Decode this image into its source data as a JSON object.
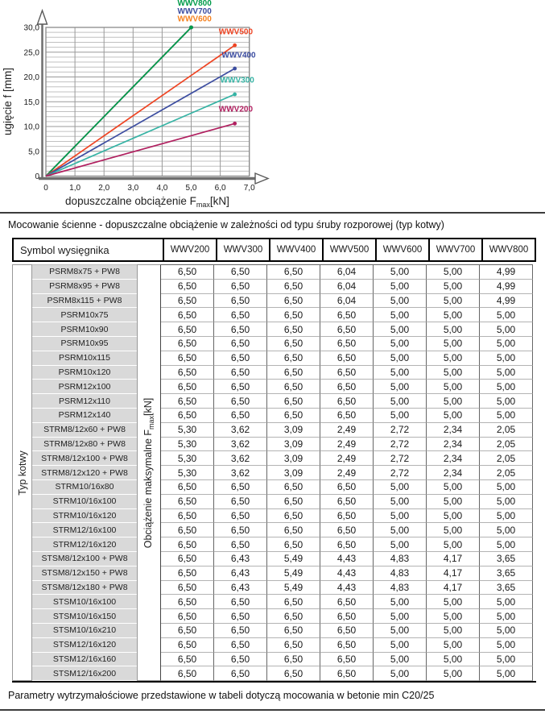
{
  "caption": "Mocowanie ścienne - dopuszczalne obciążenie w zależności od typu śruby rozporowej (typ kotwy)",
  "footnote": "Parametry wytrzymałościowe przedstawione w tabeli dotyczą mocowania w betonie min C20/25",
  "chart_data": {
    "type": "line",
    "title": "",
    "ylabel": "ugięcie f [mm]",
    "xlabel_prefix": "dopuszczalne obciążenie F",
    "xlabel_sub": "max",
    "xlabel_suffix": "[kN]",
    "xlim": [
      0,
      7.2
    ],
    "ylim": [
      0,
      30
    ],
    "grid": {
      "x_step": 1.0,
      "y_step": 1.0,
      "y_major_step": 5.0
    },
    "x_ticks": [
      {
        "v": 0,
        "label": "0"
      },
      {
        "v": 1,
        "label": "1,0"
      },
      {
        "v": 2,
        "label": "2,0"
      },
      {
        "v": 3,
        "label": "3,0"
      },
      {
        "v": 4,
        "label": "4,0"
      },
      {
        "v": 5,
        "label": "5,0"
      },
      {
        "v": 6,
        "label": "6,0"
      },
      {
        "v": 7,
        "label": "7,0"
      }
    ],
    "y_ticks": [
      {
        "v": 0,
        "label": "0"
      },
      {
        "v": 5,
        "label": "5,0"
      },
      {
        "v": 10,
        "label": "10,0"
      },
      {
        "v": 15,
        "label": "15,0"
      },
      {
        "v": 20,
        "label": "20,0"
      },
      {
        "v": 25,
        "label": "25,0"
      },
      {
        "v": 30,
        "label": "30,0"
      }
    ],
    "legend_position": "inline-labels",
    "series": [
      {
        "name": "WWV600",
        "color": "#f58220",
        "points": [
          [
            0,
            0
          ],
          [
            5.0,
            30.0
          ]
        ],
        "label_at": [
          4.53,
          31.2
        ],
        "note": "overlaps WWV800 line"
      },
      {
        "name": "WWV700",
        "color": "#3c4da0",
        "points": [
          [
            0,
            0
          ],
          [
            5.0,
            30.0
          ]
        ],
        "label_at": [
          4.53,
          32.8
        ],
        "note": "overlaps WWV800 line"
      },
      {
        "name": "WWV800",
        "color": "#009b4a",
        "points": [
          [
            0,
            0
          ],
          [
            5.0,
            30.0
          ]
        ],
        "label_at": [
          4.53,
          34.4
        ]
      },
      {
        "name": "WWV500",
        "color": "#ee4423",
        "points": [
          [
            0,
            0
          ],
          [
            6.5,
            26.4
          ]
        ],
        "label_at": [
          5.95,
          28.6
        ]
      },
      {
        "name": "WWV400",
        "color": "#3c4da0",
        "points": [
          [
            0,
            0
          ],
          [
            6.5,
            21.7
          ]
        ],
        "label_at": [
          6.05,
          23.9
        ]
      },
      {
        "name": "WWV300",
        "color": "#35b3a4",
        "points": [
          [
            0,
            0
          ],
          [
            6.5,
            16.5
          ]
        ],
        "label_at": [
          6.0,
          18.9
        ]
      },
      {
        "name": "WWV200",
        "color": "#b01f5f",
        "points": [
          [
            0,
            0
          ],
          [
            6.5,
            10.6
          ]
        ],
        "label_at": [
          5.95,
          13.0
        ]
      }
    ]
  },
  "table": {
    "corner_header": "Symbol wysięgnika",
    "col_headers": [
      "WWV200",
      "WWV300",
      "WWV400",
      "WWV500",
      "WWV600",
      "WWV700",
      "WWV800"
    ],
    "left_label": "Typ kotwy",
    "mid_label": {
      "prefix": "Obciążenie maksymalne F",
      "sub": "max",
      "suffix": "[kN]"
    },
    "rows": [
      {
        "symbol": "PSRM8x75 + PW8",
        "values": [
          "6,50",
          "6,50",
          "6,50",
          "6,04",
          "5,00",
          "5,00",
          "4,99"
        ]
      },
      {
        "symbol": "PSRM8x95 + PW8",
        "values": [
          "6,50",
          "6,50",
          "6,50",
          "6,04",
          "5,00",
          "5,00",
          "4,99"
        ]
      },
      {
        "symbol": "PSRM8x115 + PW8",
        "values": [
          "6,50",
          "6,50",
          "6,50",
          "6,04",
          "5,00",
          "5,00",
          "4,99"
        ]
      },
      {
        "symbol": "PSRM10x75",
        "values": [
          "6,50",
          "6,50",
          "6,50",
          "6,50",
          "5,00",
          "5,00",
          "5,00"
        ]
      },
      {
        "symbol": "PSRM10x90",
        "values": [
          "6,50",
          "6,50",
          "6,50",
          "6,50",
          "5,00",
          "5,00",
          "5,00"
        ]
      },
      {
        "symbol": "PSRM10x95",
        "values": [
          "6,50",
          "6,50",
          "6,50",
          "6,50",
          "5,00",
          "5,00",
          "5,00"
        ]
      },
      {
        "symbol": "PSRM10x115",
        "values": [
          "6,50",
          "6,50",
          "6,50",
          "6,50",
          "5,00",
          "5,00",
          "5,00"
        ]
      },
      {
        "symbol": "PSRM10x120",
        "values": [
          "6,50",
          "6,50",
          "6,50",
          "6,50",
          "5,00",
          "5,00",
          "5,00"
        ]
      },
      {
        "symbol": "PSRM12x100",
        "values": [
          "6,50",
          "6,50",
          "6,50",
          "6,50",
          "5,00",
          "5,00",
          "5,00"
        ]
      },
      {
        "symbol": "PSRM12x110",
        "values": [
          "6,50",
          "6,50",
          "6,50",
          "6,50",
          "5,00",
          "5,00",
          "5,00"
        ]
      },
      {
        "symbol": "PSRM12x140",
        "values": [
          "6,50",
          "6,50",
          "6,50",
          "6,50",
          "5,00",
          "5,00",
          "5,00"
        ]
      },
      {
        "symbol": "STRM8/12x60 + PW8",
        "values": [
          "5,30",
          "3,62",
          "3,09",
          "2,49",
          "2,72",
          "2,34",
          "2,05"
        ]
      },
      {
        "symbol": "STRM8/12x80 + PW8",
        "values": [
          "5,30",
          "3,62",
          "3,09",
          "2,49",
          "2,72",
          "2,34",
          "2,05"
        ]
      },
      {
        "symbol": "STRM8/12x100 + PW8",
        "values": [
          "5,30",
          "3,62",
          "3,09",
          "2,49",
          "2,72",
          "2,34",
          "2,05"
        ]
      },
      {
        "symbol": "STRM8/12x120 + PW8",
        "values": [
          "5,30",
          "3,62",
          "3,09",
          "2,49",
          "2,72",
          "2,34",
          "2,05"
        ]
      },
      {
        "symbol": "STRM10/16x80",
        "values": [
          "6,50",
          "6,50",
          "6,50",
          "6,50",
          "5,00",
          "5,00",
          "5,00"
        ]
      },
      {
        "symbol": "STRM10/16x100",
        "values": [
          "6,50",
          "6,50",
          "6,50",
          "6,50",
          "5,00",
          "5,00",
          "5,00"
        ]
      },
      {
        "symbol": "STRM10/16x120",
        "values": [
          "6,50",
          "6,50",
          "6,50",
          "6,50",
          "5,00",
          "5,00",
          "5,00"
        ]
      },
      {
        "symbol": "STRM12/16x100",
        "values": [
          "6,50",
          "6,50",
          "6,50",
          "6,50",
          "5,00",
          "5,00",
          "5,00"
        ]
      },
      {
        "symbol": "STRM12/16x120",
        "values": [
          "6,50",
          "6,50",
          "6,50",
          "6,50",
          "5,00",
          "5,00",
          "5,00"
        ]
      },
      {
        "symbol": "STSM8/12x100 + PW8",
        "values": [
          "6,50",
          "6,43",
          "5,49",
          "4,43",
          "4,83",
          "4,17",
          "3,65"
        ]
      },
      {
        "symbol": "STSM8/12x150 + PW8",
        "values": [
          "6,50",
          "6,43",
          "5,49",
          "4,43",
          "4,83",
          "4,17",
          "3,65"
        ]
      },
      {
        "symbol": "STSM8/12x180 + PW8",
        "values": [
          "6,50",
          "6,43",
          "5,49",
          "4,43",
          "4,83",
          "4,17",
          "3,65"
        ]
      },
      {
        "symbol": "STSM10/16x100",
        "values": [
          "6,50",
          "6,50",
          "6,50",
          "6,50",
          "5,00",
          "5,00",
          "5,00"
        ]
      },
      {
        "symbol": "STSM10/16x150",
        "values": [
          "6,50",
          "6,50",
          "6,50",
          "6,50",
          "5,00",
          "5,00",
          "5,00"
        ]
      },
      {
        "symbol": "STSM10/16x210",
        "values": [
          "6,50",
          "6,50",
          "6,50",
          "6,50",
          "5,00",
          "5,00",
          "5,00"
        ]
      },
      {
        "symbol": "STSM12/16x120",
        "values": [
          "6,50",
          "6,50",
          "6,50",
          "6,50",
          "5,00",
          "5,00",
          "5,00"
        ]
      },
      {
        "symbol": "STSM12/16x160",
        "values": [
          "6,50",
          "6,50",
          "6,50",
          "6,50",
          "5,00",
          "5,00",
          "5,00"
        ]
      },
      {
        "symbol": "STSM12/16x200",
        "values": [
          "6,50",
          "6,50",
          "6,50",
          "6,50",
          "5,00",
          "5,00",
          "5,00"
        ]
      }
    ]
  }
}
